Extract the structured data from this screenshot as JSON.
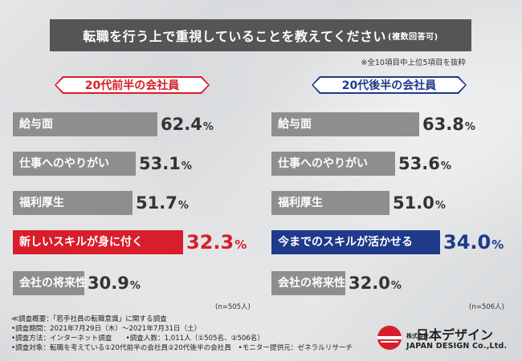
{
  "title": "転職を行う上で重視していることを教えてください",
  "title_sub": "(複数回答可)",
  "note_top": "※全10項目中上位5項目を抜粋",
  "chart_data": [
    {
      "type": "bar",
      "group_label": "20代前半の会社員",
      "categories": [
        "給与面",
        "仕事へのやりがい",
        "福利厚生",
        "新しいスキルが身に付く",
        "会社の将来性"
      ],
      "values": [
        62.4,
        53.1,
        51.7,
        32.3,
        30.9
      ],
      "value_labels": [
        "62.4",
        "53.1",
        "51.7",
        "32.3",
        "30.9"
      ],
      "unit": "%",
      "highlight_index": 3,
      "highlight_color": "#d81e2b",
      "bar_color": "#8d8e90",
      "n_note": "(n=505人)"
    },
    {
      "type": "bar",
      "group_label": "20代後半の会社員",
      "categories": [
        "給与面",
        "仕事へのやりがい",
        "福利厚生",
        "今までのスキルが活かせる",
        "会社の将来性"
      ],
      "values": [
        63.8,
        53.6,
        51.0,
        34.0,
        32.0
      ],
      "value_labels": [
        "63.8",
        "53.6",
        "51.0",
        "34.0",
        "32.0"
      ],
      "unit": "%",
      "highlight_index": 3,
      "highlight_color": "#1f3a8a",
      "bar_color": "#8d8e90",
      "n_note": "(n=506人)"
    }
  ],
  "footer": [
    "≪調査概要：「若手社員の転職意識」に関する調査",
    "•調査期間：2021年7月29日（木）〜2021年7月31日（土）",
    "•調査方法：インターネット調査　　•調査人数：1,011人（①505名、②506名）",
    "•調査対象：転職を考えている①20代前半の会社員②20代後半の会社員　•モニター提供元：ゼネラルリサーチ"
  ],
  "logo": {
    "kabushiki": "株式会社",
    "name": "日本デザイン",
    "english": "JAPAN DESIGN Co.,Ltd."
  }
}
